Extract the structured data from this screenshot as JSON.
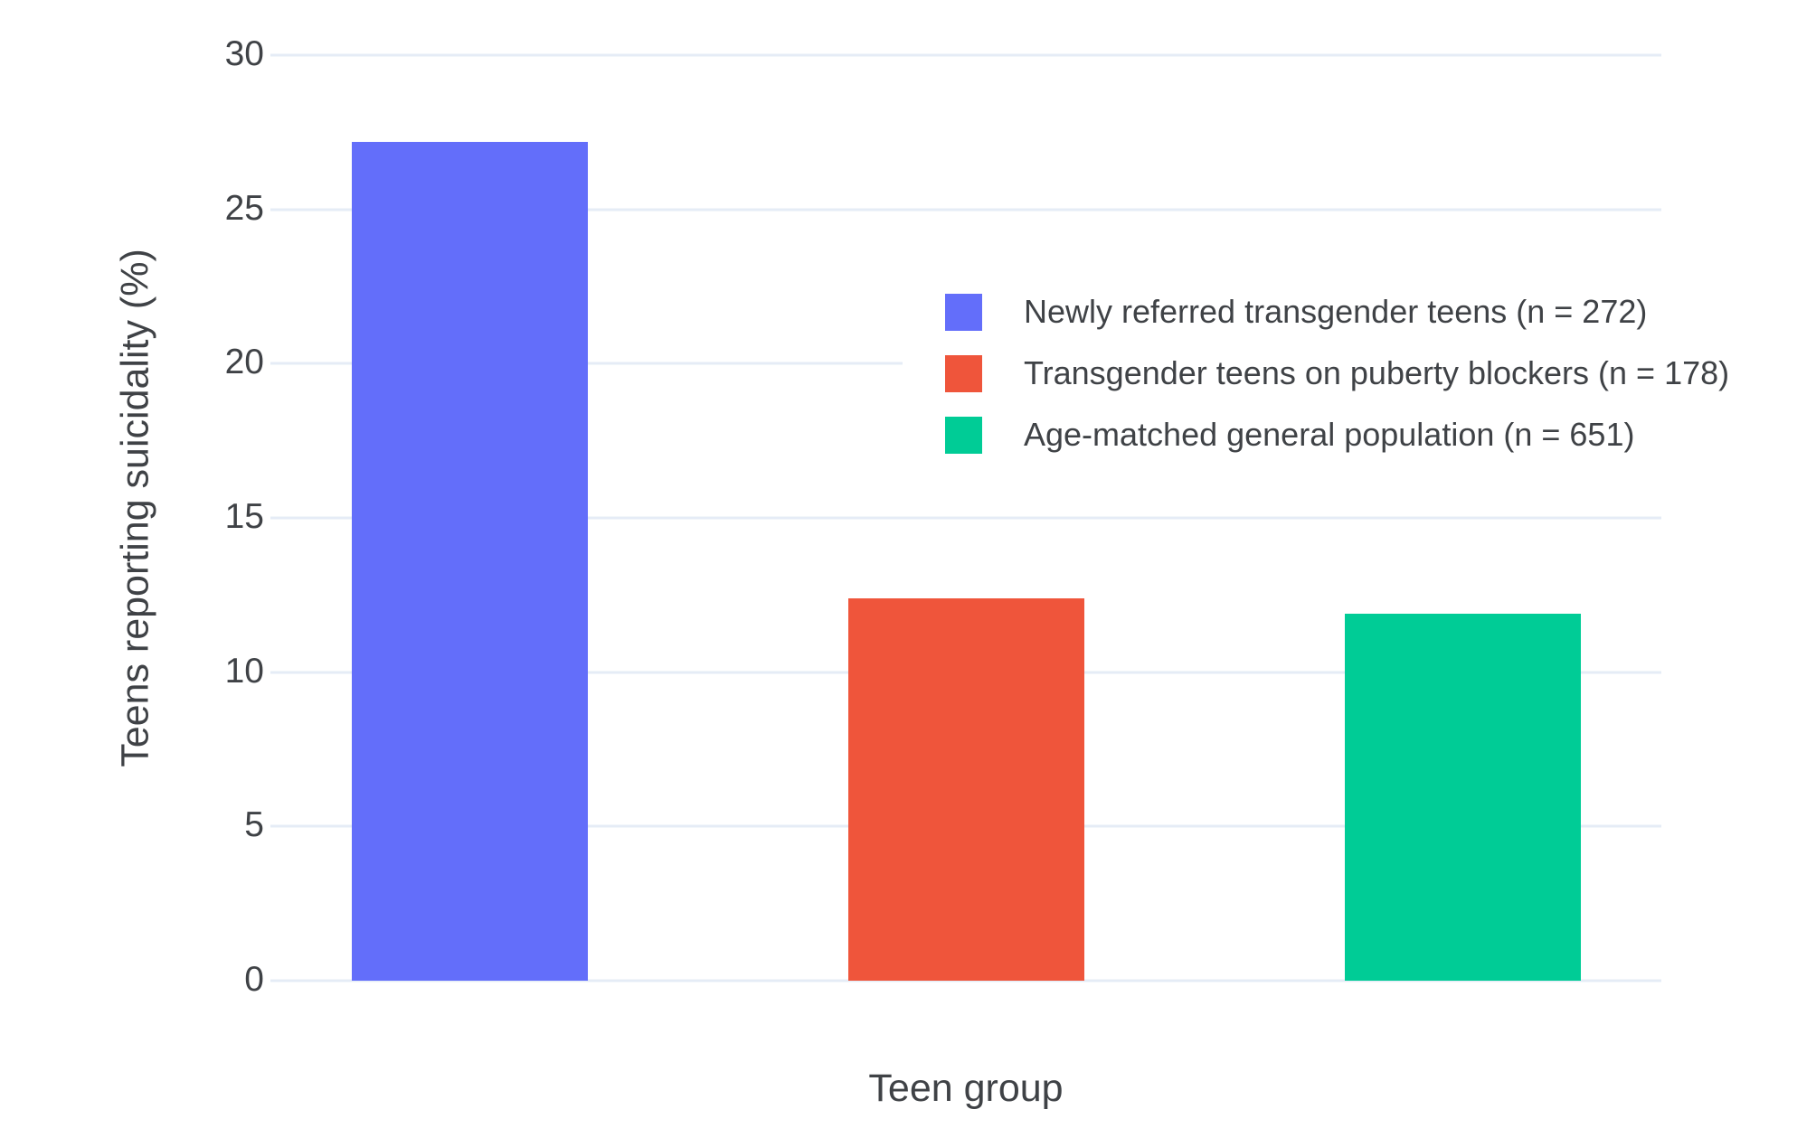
{
  "chart_data": {
    "type": "bar",
    "title": "",
    "xlabel": "Teen group",
    "ylabel": "Teens reporting suicidality (%)",
    "ylim": [
      0,
      30
    ],
    "yticks": [
      0,
      5,
      10,
      15,
      20,
      25,
      30
    ],
    "grid": true,
    "legend_position": "inside upper-right of plot",
    "categories": [
      "Newly referred transgender teens",
      "Transgender teens on puberty blockers",
      "Age-matched general population"
    ],
    "series": [
      {
        "label": "Newly referred transgender teens (n = 272)",
        "value": 27.2,
        "color": "#636EFA"
      },
      {
        "label": "Transgender teens on puberty blockers (n = 178)",
        "value": 12.4,
        "color": "#EF553B"
      },
      {
        "label": "Age-matched general population (n = 651)",
        "value": 11.9,
        "color": "#00CC96"
      }
    ],
    "colors": {
      "gridline": "#E5ECF6",
      "text": "#3f4246",
      "background": "#ffffff"
    }
  }
}
